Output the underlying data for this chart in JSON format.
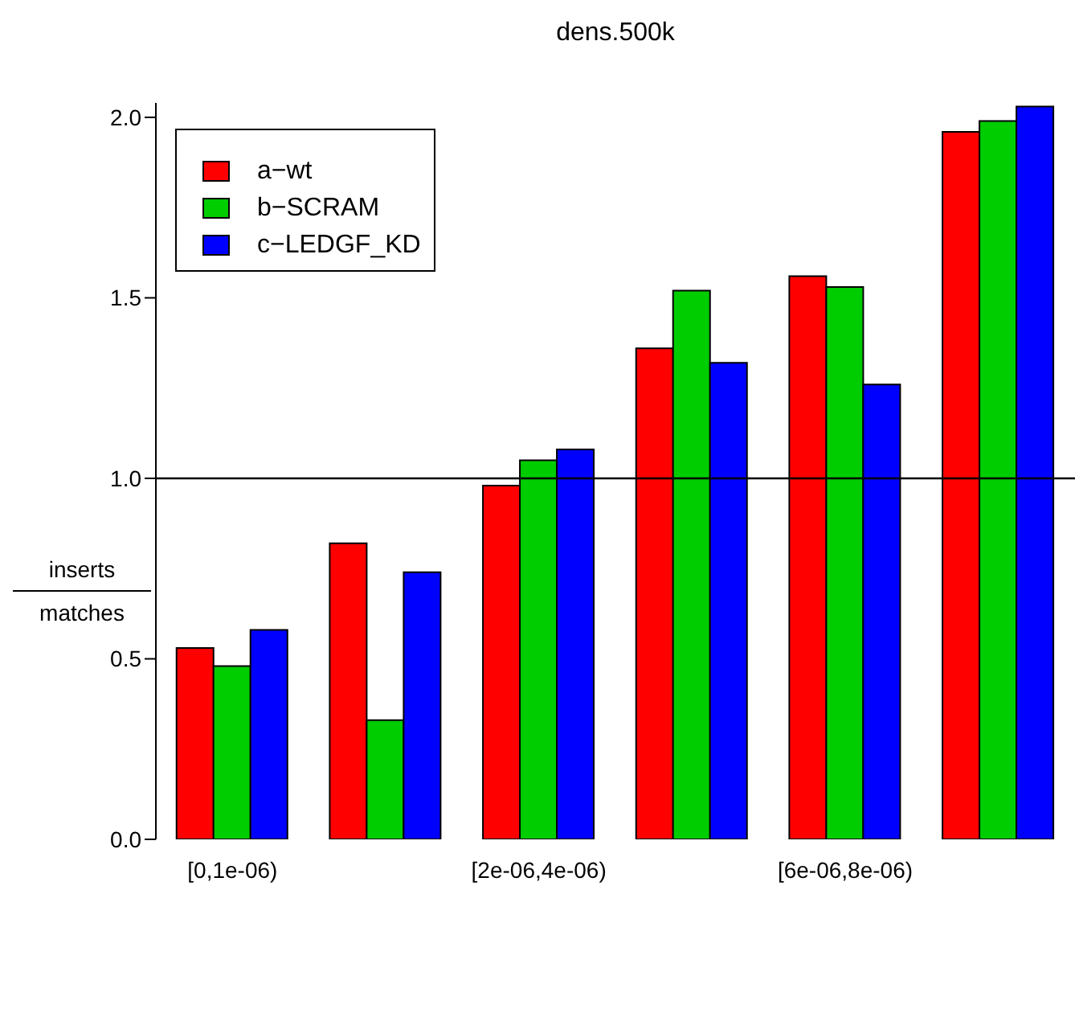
{
  "chart_data": {
    "type": "bar",
    "title": "dens.500k",
    "ylabel": "inserts\nmatches",
    "categories": [
      "[0,1e-06)",
      null,
      "[2e-06,4e-06)",
      null,
      "[6e-06,8e-06)",
      null
    ],
    "series": [
      {
        "name": "a−wt",
        "color": "#ff0000",
        "values": [
          0.53,
          0.82,
          0.98,
          1.36,
          1.56,
          1.96
        ]
      },
      {
        "name": "b−SCRAM",
        "color": "#00cd00",
        "values": [
          0.48,
          0.33,
          1.05,
          1.52,
          1.53,
          1.99
        ]
      },
      {
        "name": "c−LEDGF_KD",
        "color": "#0000ff",
        "values": [
          0.58,
          0.74,
          1.08,
          1.32,
          1.26,
          2.03
        ]
      }
    ],
    "ylim": [
      0,
      2.04
    ],
    "yticks": [
      {
        "value": 0,
        "label": "0.0"
      },
      0.5,
      {
        "value": 1,
        "label": "1.0"
      },
      1.5,
      {
        "value": 2,
        "label": "2.0"
      }
    ],
    "ref_lines": [
      {
        "axis": "y",
        "value": 1,
        "color": "#000000"
      }
    ],
    "legend": "top left",
    "grid": false
  }
}
